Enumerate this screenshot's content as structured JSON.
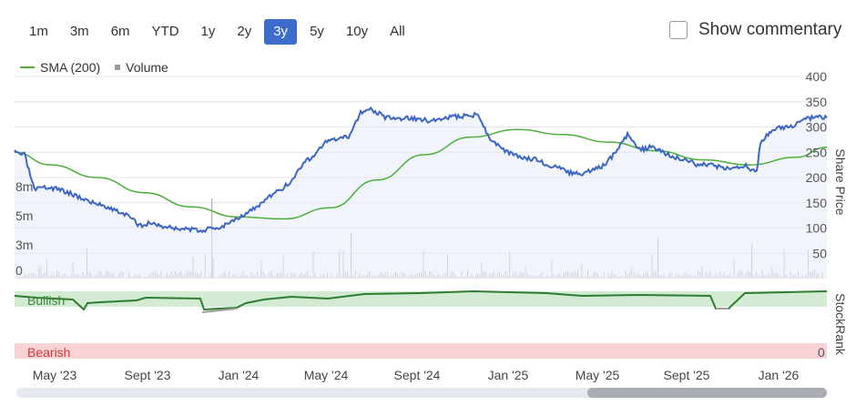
{
  "range_buttons": [
    {
      "label": "1m",
      "active": false
    },
    {
      "label": "3m",
      "active": false
    },
    {
      "label": "6m",
      "active": false
    },
    {
      "label": "YTD",
      "active": false
    },
    {
      "label": "1y",
      "active": false
    },
    {
      "label": "2y",
      "active": false
    },
    {
      "label": "3y",
      "active": true
    },
    {
      "label": "5y",
      "active": false
    },
    {
      "label": "10y",
      "active": false
    },
    {
      "label": "All",
      "active": false
    }
  ],
  "commentary": {
    "label": "Show commentary",
    "checked": false
  },
  "legend": {
    "sma_label": "SMA (200)",
    "volume_label": "Volume"
  },
  "colors": {
    "price": "#3d66c4",
    "sma": "#4caf3a",
    "volume": "#b0b0b0",
    "bullish_band": "#d3ebd3",
    "bearish_band": "#f7d3d6",
    "bullish_text": "#3a8a3a",
    "bearish_text": "#cc3a3a",
    "rank_line": "#2e7d32",
    "rank_neutral": "#9e9e9e"
  },
  "chart_data": {
    "type": "line",
    "y_axis_title": "Share Price",
    "ylim": [
      0,
      400
    ],
    "y_ticks": [
      "50",
      "100",
      "150",
      "200",
      "250",
      "300",
      "350",
      "400"
    ],
    "x_ticks": [
      "May '23",
      "Sept '23",
      "Jan '24",
      "May '24",
      "Sept '24",
      "Jan '25",
      "May '25",
      "Sept '25",
      "Jan '26"
    ],
    "volume_ticks": [
      "0",
      "3m",
      "5m",
      "8m"
    ],
    "price_series": {
      "name": "Share Price",
      "points": [
        [
          "2023-03-15",
          250
        ],
        [
          "2023-03-28",
          245
        ],
        [
          "2023-04-10",
          175
        ],
        [
          "2023-04-25",
          180
        ],
        [
          "2023-05-10",
          178
        ],
        [
          "2023-05-25",
          170
        ],
        [
          "2023-06-10",
          160
        ],
        [
          "2023-06-25",
          150
        ],
        [
          "2023-07-10",
          145
        ],
        [
          "2023-07-25",
          135
        ],
        [
          "2023-08-10",
          125
        ],
        [
          "2023-08-25",
          105
        ],
        [
          "2023-09-10",
          110
        ],
        [
          "2023-09-25",
          103
        ],
        [
          "2023-10-10",
          100
        ],
        [
          "2023-10-25",
          98
        ],
        [
          "2023-11-10",
          95
        ],
        [
          "2023-11-25",
          98
        ],
        [
          "2023-12-10",
          102
        ],
        [
          "2023-12-25",
          115
        ],
        [
          "2024-01-10",
          128
        ],
        [
          "2024-01-25",
          140
        ],
        [
          "2024-02-10",
          160
        ],
        [
          "2024-02-25",
          175
        ],
        [
          "2024-03-10",
          190
        ],
        [
          "2024-03-25",
          225
        ],
        [
          "2024-04-10",
          245
        ],
        [
          "2024-04-25",
          270
        ],
        [
          "2024-05-10",
          275
        ],
        [
          "2024-05-25",
          280
        ],
        [
          "2024-06-10",
          330
        ],
        [
          "2024-06-25",
          335
        ],
        [
          "2024-07-10",
          320
        ],
        [
          "2024-07-25",
          315
        ],
        [
          "2024-08-10",
          318
        ],
        [
          "2024-08-25",
          315
        ],
        [
          "2024-09-10",
          312
        ],
        [
          "2024-09-25",
          318
        ],
        [
          "2024-10-10",
          320
        ],
        [
          "2024-10-25",
          322
        ],
        [
          "2024-11-10",
          325
        ],
        [
          "2024-11-25",
          280
        ],
        [
          "2024-12-10",
          258
        ],
        [
          "2024-12-25",
          245
        ],
        [
          "2025-01-10",
          240
        ],
        [
          "2025-01-25",
          235
        ],
        [
          "2025-02-10",
          225
        ],
        [
          "2025-02-25",
          218
        ],
        [
          "2025-03-10",
          210
        ],
        [
          "2025-03-25",
          205
        ],
        [
          "2025-04-10",
          215
        ],
        [
          "2025-04-25",
          225
        ],
        [
          "2025-05-10",
          250
        ],
        [
          "2025-05-25",
          285
        ],
        [
          "2025-06-10",
          255
        ],
        [
          "2025-06-25",
          260
        ],
        [
          "2025-07-10",
          250
        ],
        [
          "2025-07-25",
          240
        ],
        [
          "2025-08-10",
          235
        ],
        [
          "2025-08-25",
          225
        ],
        [
          "2025-09-10",
          225
        ],
        [
          "2025-09-25",
          220
        ],
        [
          "2025-10-10",
          215
        ],
        [
          "2025-10-25",
          225
        ],
        [
          "2025-11-10",
          210
        ],
        [
          "2025-11-15",
          270
        ],
        [
          "2025-11-25",
          285
        ],
        [
          "2025-12-10",
          300
        ],
        [
          "2025-12-25",
          300
        ],
        [
          "2026-01-10",
          315
        ],
        [
          "2026-01-25",
          320
        ],
        [
          "2026-02-10",
          318
        ]
      ]
    },
    "sma_series": {
      "name": "SMA (200)",
      "points": [
        [
          "2023-03-15",
          250
        ],
        [
          "2023-05-01",
          225
        ],
        [
          "2023-07-01",
          200
        ],
        [
          "2023-09-01",
          170
        ],
        [
          "2023-11-01",
          142
        ],
        [
          "2024-01-01",
          122
        ],
        [
          "2024-03-01",
          118
        ],
        [
          "2024-05-01",
          140
        ],
        [
          "2024-07-01",
          195
        ],
        [
          "2024-09-01",
          245
        ],
        [
          "2024-11-01",
          280
        ],
        [
          "2025-01-01",
          295
        ],
        [
          "2025-03-01",
          285
        ],
        [
          "2025-05-01",
          270
        ],
        [
          "2025-07-01",
          253
        ],
        [
          "2025-09-01",
          235
        ],
        [
          "2025-11-01",
          225
        ],
        [
          "2026-01-01",
          240
        ],
        [
          "2026-02-10",
          260
        ]
      ]
    },
    "stockrank": {
      "axis_title": "StockRank",
      "bullish_label": "Bullish",
      "bearish_label": "Bearish",
      "bearish_value": "0"
    }
  }
}
